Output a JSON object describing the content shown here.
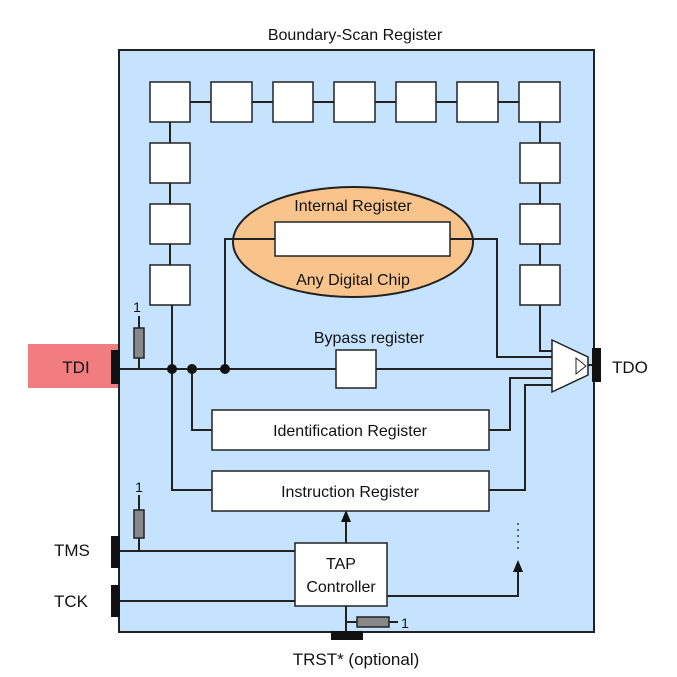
{
  "title": "Boundary-Scan Register",
  "chip": {
    "internal_register": "Internal Register",
    "label": "Any Digital Chip"
  },
  "registers": {
    "bypass": "Bypass register",
    "identification": "Identification Register",
    "instruction": "Instruction Register"
  },
  "tap": {
    "line1": "TAP",
    "line2": "Controller"
  },
  "pins": {
    "tdi": "TDI",
    "tdo": "TDO",
    "tms": "TMS",
    "tck": "TCK",
    "trst": "TRST* (optional)"
  },
  "pullups": {
    "tdi": "1",
    "tms": "1",
    "trst": "1"
  },
  "colors": {
    "chip_bg": "#c5e2ff",
    "ellipse": "#f8c48c",
    "tdi_highlight": "#ef6f73",
    "line": "#222222"
  }
}
